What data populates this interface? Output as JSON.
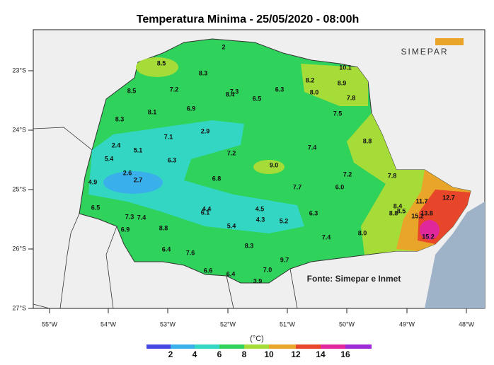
{
  "title": "Temperatura Minima - 25/05/2020 - 08:00h",
  "logo": "SIMEPAR",
  "source": "Fonte: Simepar e Inmet",
  "unit": "(°C)",
  "lat_labels": [
    "23°S",
    "24°S",
    "25°S",
    "26°S",
    "27°S"
  ],
  "lon_labels": [
    "55°W",
    "54°W",
    "53°W",
    "52°W",
    "51°W",
    "50°W",
    "49°W",
    "48°W"
  ],
  "legend": {
    "colors": [
      "#4447e0",
      "#3ab0ea",
      "#32d6c2",
      "#2fd25a",
      "#a6dc38",
      "#e9a52a",
      "#e8462a",
      "#e0289c",
      "#9c2ad6"
    ],
    "labels": [
      "2",
      "4",
      "6",
      "8",
      "10",
      "12",
      "14",
      "16"
    ]
  },
  "stations": [
    "2",
    "8.5",
    "8.3",
    "10.1",
    "8.2",
    "8.9",
    "8.5",
    "7.2",
    "7.3",
    "8.4",
    "6.3",
    "8.0",
    "6.5",
    "7.8",
    "8.1",
    "6.9",
    "7.5",
    "8.3",
    "7.1",
    "2.9",
    "8.8",
    "2.4",
    "5.1",
    "7.4",
    "7.2",
    "5.4",
    "6.3",
    "9.0",
    "2.6",
    "7.2",
    "7.8",
    "2.7",
    "6.8",
    "4.9",
    "7.7",
    "6.0",
    "6.5",
    "8.4",
    "8.5",
    "4.4",
    "6.1",
    "4.5",
    "11.7",
    "12.7",
    "8.8",
    "6.3",
    "7.3",
    "7.4",
    "15.2",
    "13.8",
    "4.3",
    "5.2",
    "6.9",
    "8.8",
    "5.4",
    "8.0",
    "7.4",
    "15.2",
    "8.3",
    "6.4",
    "7.6",
    "9.7",
    "6.6",
    "6.4",
    "7.0",
    "3.9"
  ]
}
